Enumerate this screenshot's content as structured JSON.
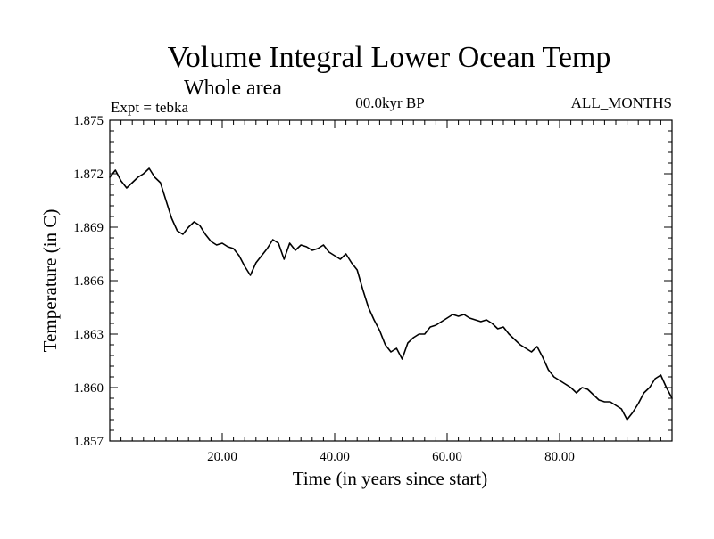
{
  "chart_data": {
    "type": "line",
    "title": "Volume Integral Lower Ocean Temp",
    "subtitle": "Whole area",
    "experiment_label": "Expt = tebka",
    "period_label": "00.0kyr BP",
    "months_label": "ALL_MONTHS",
    "xlabel": "Time (in years since start)",
    "ylabel": "Temperature (in C)",
    "xlim": [
      0,
      100
    ],
    "ylim": [
      1.857,
      1.875
    ],
    "x_ticks": [
      20,
      40,
      60,
      80
    ],
    "x_tick_labels": [
      "20.00",
      "40.00",
      "60.00",
      "80.00"
    ],
    "y_ticks": [
      1.857,
      1.86,
      1.863,
      1.866,
      1.869,
      1.872,
      1.875
    ],
    "y_tick_labels": [
      "1.857",
      "1.860",
      "1.863",
      "1.866",
      "1.869",
      "1.872",
      "1.875"
    ],
    "grid": false,
    "series": [
      {
        "name": "Volume integral lower ocean temperature",
        "color": "#000000",
        "x": [
          0,
          1,
          2,
          3,
          4,
          5,
          6,
          7,
          8,
          9,
          10,
          11,
          12,
          13,
          14,
          15,
          16,
          17,
          18,
          19,
          20,
          21,
          22,
          23,
          24,
          25,
          26,
          27,
          28,
          29,
          30,
          31,
          32,
          33,
          34,
          35,
          36,
          37,
          38,
          39,
          40,
          41,
          42,
          43,
          44,
          45,
          46,
          47,
          48,
          49,
          50,
          51,
          52,
          53,
          54,
          55,
          56,
          57,
          58,
          59,
          60,
          61,
          62,
          63,
          64,
          65,
          66,
          67,
          68,
          69,
          70,
          71,
          72,
          73,
          74,
          75,
          76,
          77,
          78,
          79,
          80,
          81,
          82,
          83,
          84,
          85,
          86,
          87,
          88,
          89,
          90,
          91,
          92,
          93,
          94,
          95,
          96,
          97,
          98,
          99,
          100
        ],
        "values": [
          1.8718,
          1.8722,
          1.8716,
          1.8712,
          1.8715,
          1.8718,
          1.872,
          1.8723,
          1.8718,
          1.8715,
          1.8705,
          1.8695,
          1.8688,
          1.8686,
          1.869,
          1.8693,
          1.8691,
          1.8686,
          1.8682,
          1.868,
          1.8681,
          1.8679,
          1.8678,
          1.8674,
          1.8668,
          1.8663,
          1.867,
          1.8674,
          1.8678,
          1.8683,
          1.8681,
          1.8672,
          1.8681,
          1.8677,
          1.868,
          1.8679,
          1.8677,
          1.8678,
          1.868,
          1.8676,
          1.8674,
          1.8672,
          1.8675,
          1.867,
          1.8666,
          1.8655,
          1.8645,
          1.8638,
          1.8632,
          1.8624,
          1.862,
          1.8622,
          1.8616,
          1.8625,
          1.8628,
          1.863,
          1.863,
          1.8634,
          1.8635,
          1.8637,
          1.8639,
          1.8641,
          1.864,
          1.8641,
          1.8639,
          1.8638,
          1.8637,
          1.8638,
          1.8636,
          1.8633,
          1.8634,
          1.863,
          1.8627,
          1.8624,
          1.8622,
          1.862,
          1.8623,
          1.8617,
          1.861,
          1.8606,
          1.8604,
          1.8602,
          1.86,
          1.8597,
          1.86,
          1.8599,
          1.8596,
          1.8593,
          1.8592,
          1.8592,
          1.859,
          1.8588,
          1.8582,
          1.8586,
          1.8591,
          1.8597,
          1.86,
          1.8605,
          1.8607,
          1.86,
          1.8594
        ]
      }
    ]
  }
}
